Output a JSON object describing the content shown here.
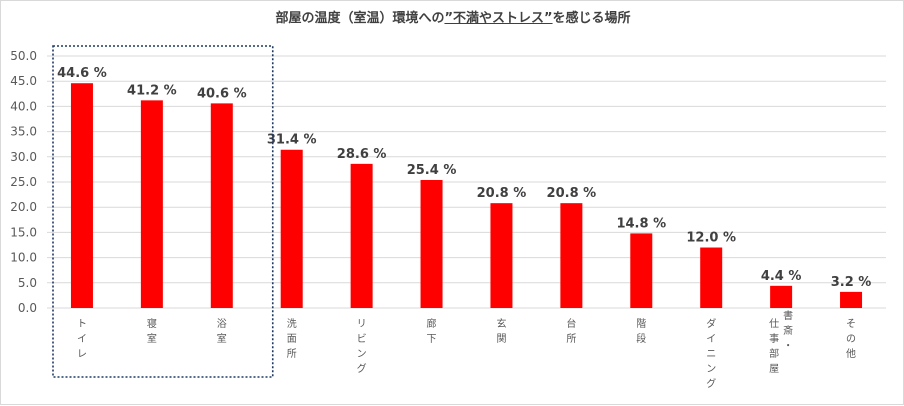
{
  "chart_data": {
    "type": "bar",
    "title": {
      "before": "部屋の温度（室温）環境への",
      "emphasis": "”不満やストレス”",
      "after": "を感じる場所"
    },
    "categories": [
      "トイレ",
      "寝室",
      "浴室",
      "洗面所",
      "リビング",
      "廊下",
      "玄関",
      "台所",
      "階段",
      "ダイニング",
      "仕事部屋・書斎",
      "その他"
    ],
    "category_lines": [
      [
        "トイレ"
      ],
      [
        "寝室"
      ],
      [
        "浴室"
      ],
      [
        "洗面所"
      ],
      [
        "リビング"
      ],
      [
        "廊下"
      ],
      [
        "玄関"
      ],
      [
        "台所"
      ],
      [
        "階段"
      ],
      [
        "ダイニング"
      ],
      [
        "仕事部屋",
        "書斎・"
      ],
      [
        "その他"
      ]
    ],
    "values": [
      44.6,
      41.2,
      40.6,
      31.4,
      28.6,
      25.4,
      20.8,
      20.8,
      14.8,
      12.0,
      4.4,
      3.2
    ],
    "data_labels": [
      "44.6 %",
      "41.2 %",
      "40.6 %",
      "31.4 %",
      "28.6 %",
      "25.4 %",
      "20.8 %",
      "20.8 %",
      "14.8 %",
      "12.0 %",
      "4.4 %",
      "3.2 %"
    ],
    "yticks": [
      "0.0",
      "5.0",
      "10.0",
      "15.0",
      "20.0",
      "25.0",
      "30.0",
      "35.0",
      "40.0",
      "45.0",
      "50.0"
    ],
    "ylim": [
      0,
      50
    ],
    "xlabel": "",
    "ylabel": "",
    "grid": true,
    "legend": "none",
    "highlight": "top 3 categories outlined with dotted box",
    "colors": {
      "bar": "#ff0000",
      "grid": "#d9d9d9",
      "text": "#595959",
      "label": "#404040",
      "highlight_box": "#1f3864"
    }
  }
}
